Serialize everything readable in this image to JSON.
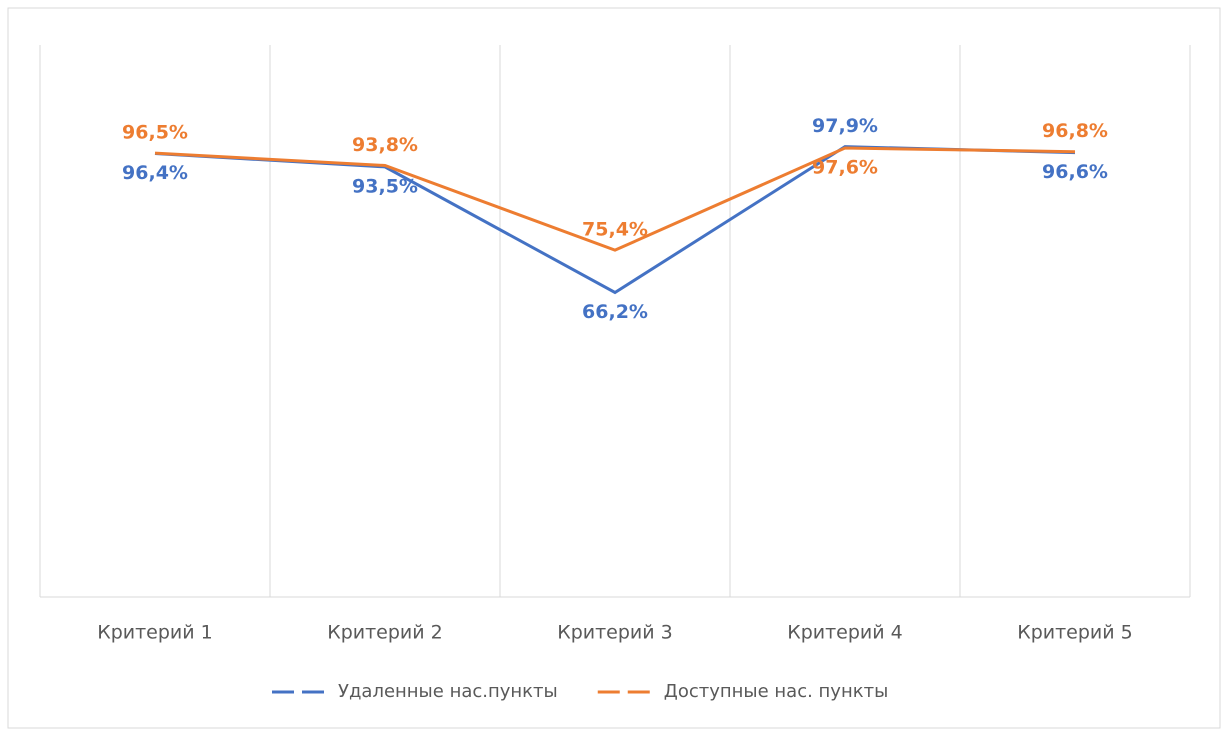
{
  "chart_data": {
    "type": "line",
    "categories": [
      "Критерий 1",
      "Критерий 2",
      "Критерий 3",
      "Критерий 4",
      "Критерий 5"
    ],
    "series": [
      {
        "name": "Удаленные нас.пункты",
        "color": "#4472c4",
        "values": [
          96.4,
          93.5,
          66.2,
          97.9,
          96.6
        ],
        "value_labels": [
          "96,4%",
          "93,5%",
          "66,2%",
          "97,9%",
          "96,6%"
        ]
      },
      {
        "name": "Доступные нас. пункты",
        "color": "#ed7d31",
        "values": [
          96.5,
          93.8,
          75.4,
          97.6,
          96.8
        ],
        "value_labels": [
          "96,5%",
          "93,8%",
          "75,4%",
          "97,6%",
          "96,8%"
        ]
      }
    ],
    "ylim": [
      0,
      120
    ],
    "grid": true,
    "legend": "bottom"
  }
}
